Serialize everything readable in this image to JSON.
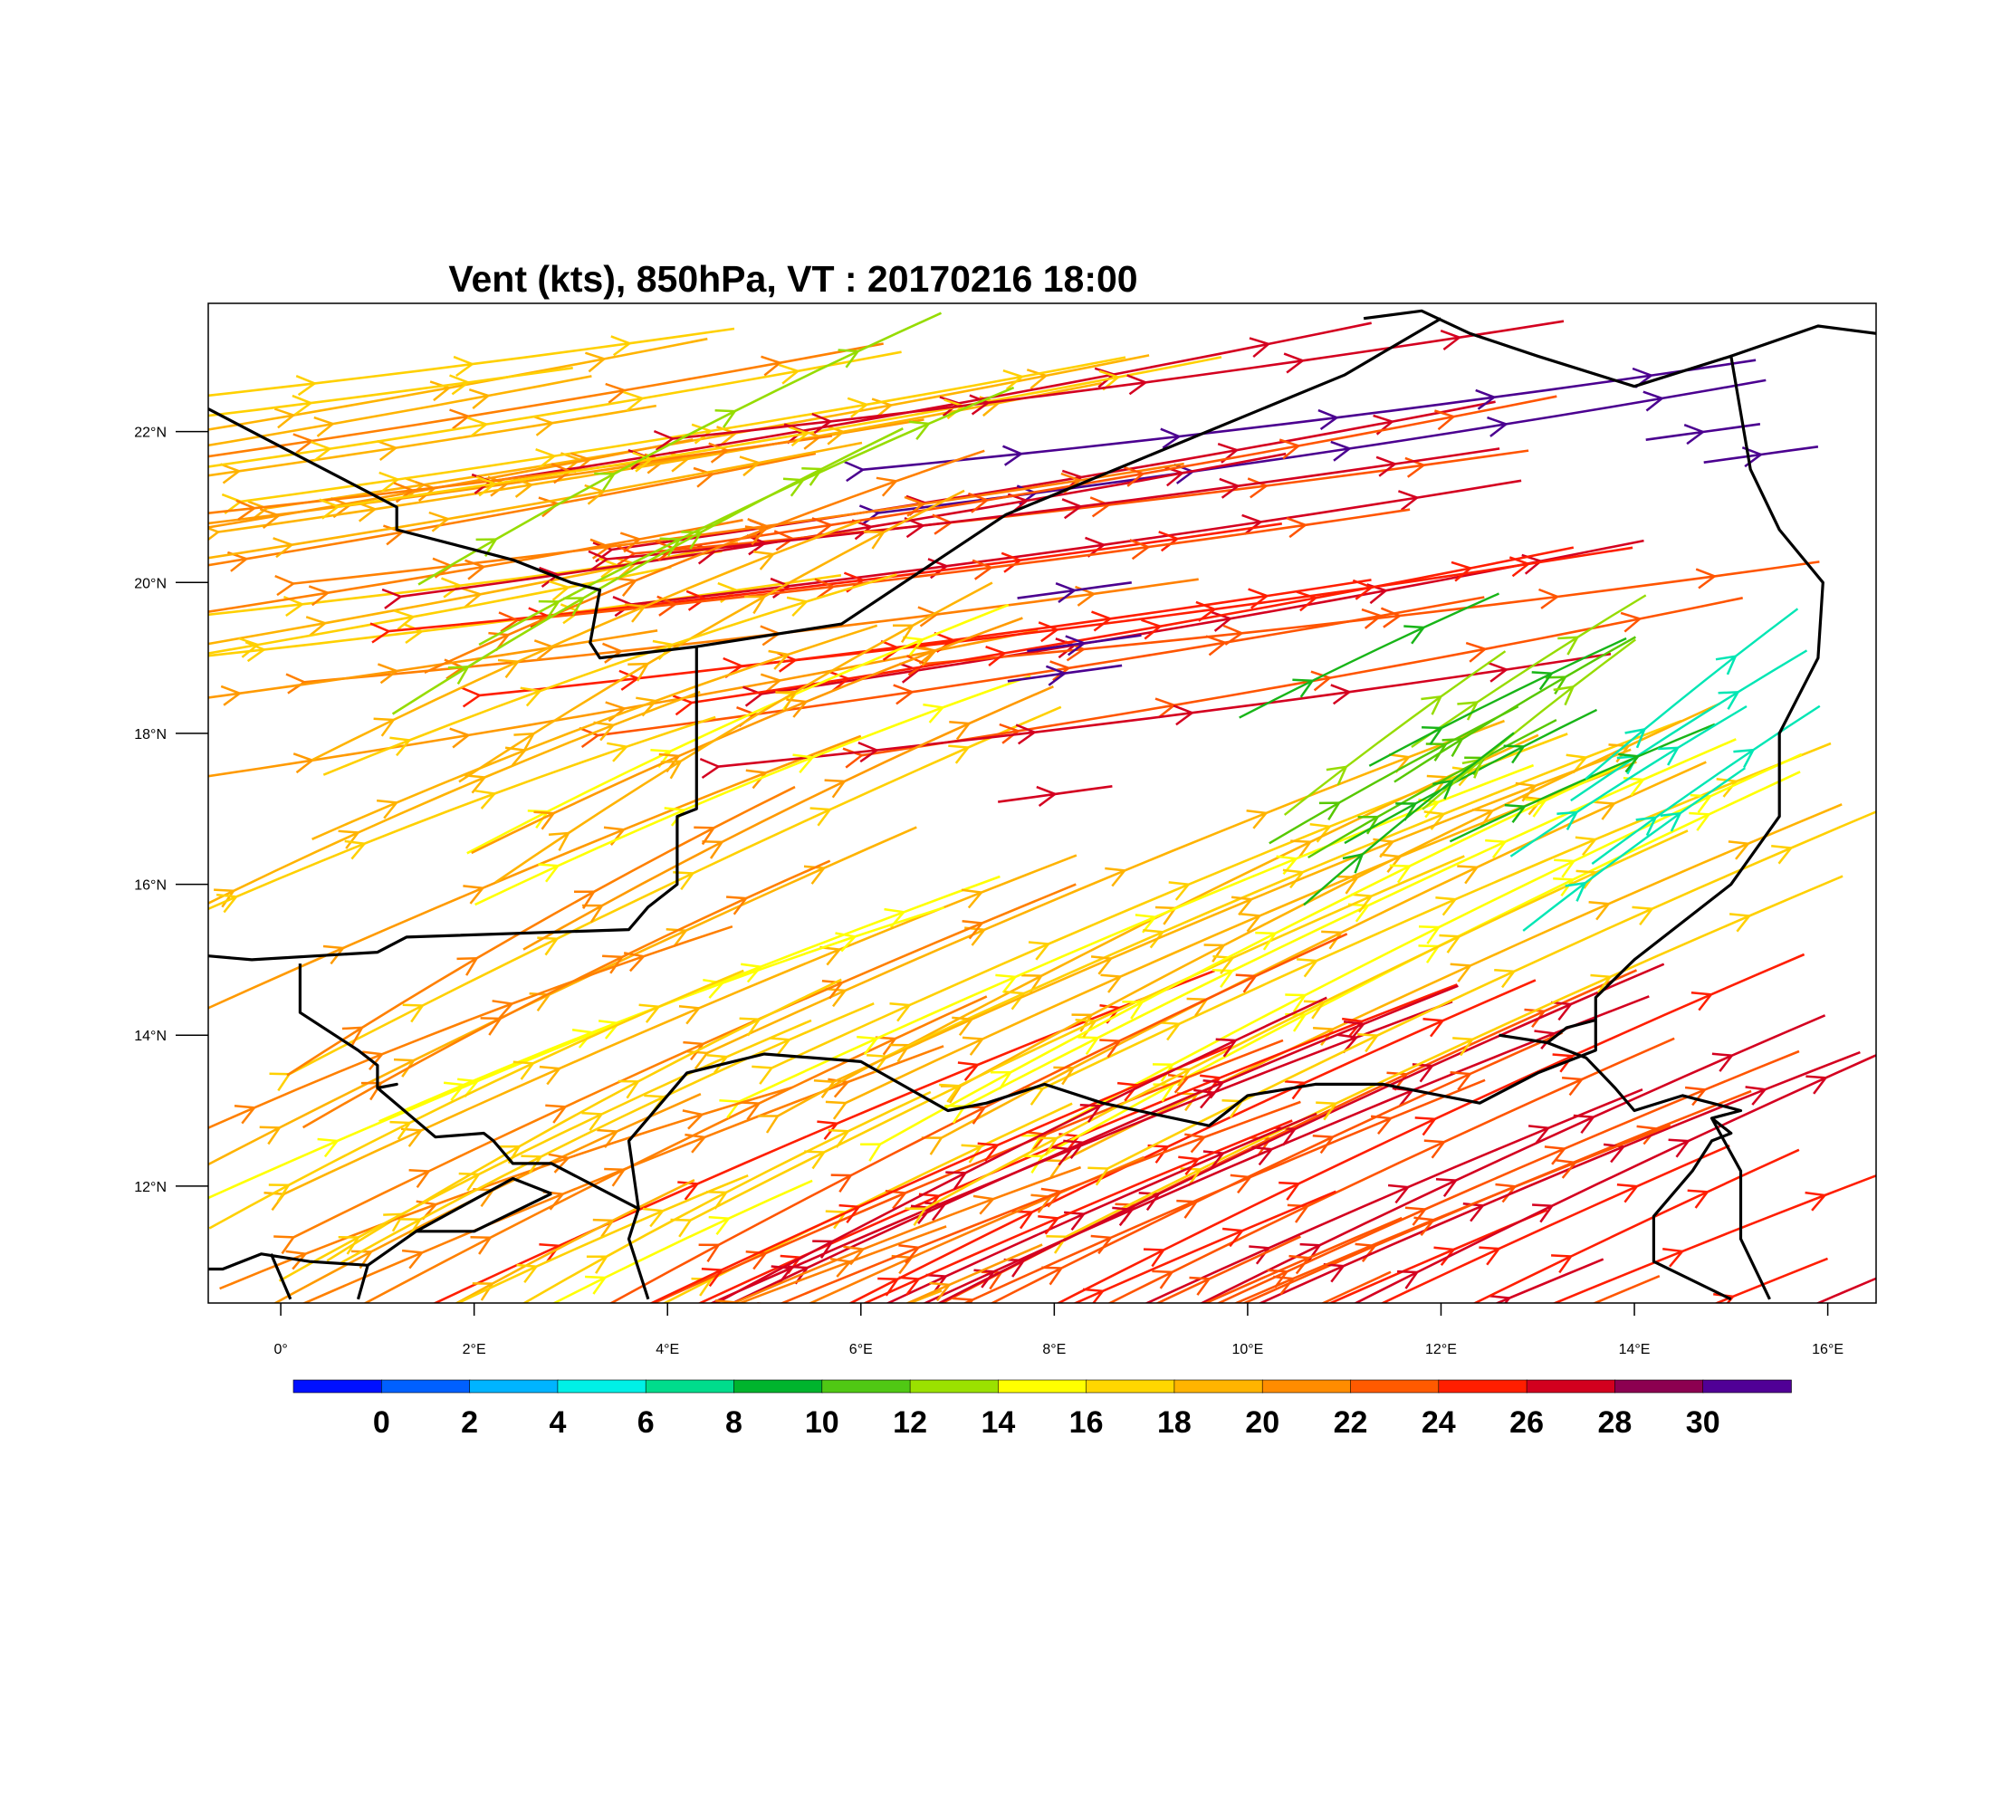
{
  "title": "Vent (kts), 850hPa, VT : 20170216  18:00",
  "map": {
    "lon_range": [
      -0.75,
      16.5
    ],
    "lat_range": [
      10.45,
      23.7
    ],
    "lon_ticks": [
      {
        "value": 0,
        "label": "0°"
      },
      {
        "value": 2,
        "label": "2°E"
      },
      {
        "value": 4,
        "label": "4°E"
      },
      {
        "value": 6,
        "label": "6°E"
      },
      {
        "value": 8,
        "label": "8°E"
      },
      {
        "value": 10,
        "label": "10°E"
      },
      {
        "value": 12,
        "label": "12°E"
      },
      {
        "value": 14,
        "label": "14°E"
      },
      {
        "value": 16,
        "label": "16°E"
      }
    ],
    "lat_ticks": [
      {
        "value": 22,
        "label": "22°N"
      },
      {
        "value": 20,
        "label": "20°N"
      },
      {
        "value": 18,
        "label": "18°N"
      },
      {
        "value": 16,
        "label": "16°N"
      },
      {
        "value": 14,
        "label": "14°N"
      },
      {
        "value": 12,
        "label": "12°N"
      }
    ],
    "borders": [
      [
        [
          -0.75,
          22.3
        ],
        [
          1.2,
          21.0
        ],
        [
          1.2,
          20.7
        ],
        [
          1.8,
          20.5
        ],
        [
          2.4,
          20.3
        ],
        [
          3.0,
          20.0
        ],
        [
          3.3,
          19.9
        ],
        [
          3.2,
          19.2
        ],
        [
          3.3,
          19.0
        ],
        [
          4.3,
          19.15
        ],
        [
          5.8,
          19.45
        ],
        [
          7.5,
          20.9
        ],
        [
          11.0,
          22.75
        ],
        [
          12.0,
          23.5
        ]
      ],
      [
        [
          4.3,
          19.15
        ],
        [
          4.3,
          17.0
        ],
        [
          4.1,
          16.9
        ],
        [
          4.1,
          16.0
        ],
        [
          3.8,
          15.7
        ],
        [
          3.6,
          15.4
        ],
        [
          1.3,
          15.3
        ],
        [
          1.0,
          15.1
        ],
        [
          -0.3,
          15.0
        ],
        [
          -0.75,
          15.05
        ]
      ],
      [
        [
          0.2,
          14.95
        ],
        [
          0.2,
          14.3
        ],
        [
          0.8,
          13.8
        ],
        [
          1.0,
          13.6
        ],
        [
          1.0,
          13.3
        ],
        [
          1.2,
          13.35
        ],
        [
          1.0,
          13.3
        ],
        [
          1.6,
          12.65
        ],
        [
          2.1,
          12.7
        ],
        [
          2.2,
          12.6
        ],
        [
          2.4,
          12.3
        ],
        [
          2.8,
          12.3
        ],
        [
          3.4,
          11.9
        ],
        [
          3.7,
          11.7
        ],
        [
          3.6,
          11.3
        ],
        [
          3.8,
          10.5
        ]
      ],
      [
        [
          3.7,
          11.7
        ],
        [
          3.6,
          12.6
        ],
        [
          4.2,
          13.5
        ],
        [
          5.0,
          13.75
        ],
        [
          6.0,
          13.65
        ],
        [
          6.9,
          13.0
        ],
        [
          7.3,
          13.1
        ],
        [
          7.9,
          13.35
        ],
        [
          8.5,
          13.1
        ],
        [
          9.6,
          12.8
        ],
        [
          10.0,
          13.2
        ],
        [
          10.7,
          13.35
        ],
        [
          11.4,
          13.35
        ],
        [
          12.4,
          13.1
        ],
        [
          13.0,
          13.5
        ],
        [
          13.6,
          13.8
        ],
        [
          13.6,
          14.5
        ],
        [
          14.0,
          15.0
        ],
        [
          15.0,
          16.0
        ],
        [
          15.5,
          16.9
        ],
        [
          15.5,
          18.0
        ],
        [
          15.9,
          19.0
        ],
        [
          15.95,
          20.0
        ],
        [
          15.5,
          20.7
        ],
        [
          15.2,
          21.5
        ],
        [
          15.0,
          23.0
        ],
        [
          14.0,
          22.6
        ],
        [
          13.0,
          23.0
        ],
        [
          12.3,
          23.3
        ],
        [
          11.8,
          23.6
        ],
        [
          11.2,
          23.5
        ]
      ],
      [
        [
          15.0,
          23.0
        ],
        [
          15.9,
          23.4
        ],
        [
          16.5,
          23.3
        ]
      ],
      [
        [
          -0.75,
          10.9
        ],
        [
          -0.6,
          10.9
        ],
        [
          -0.2,
          11.1
        ],
        [
          0.3,
          11.0
        ],
        [
          0.9,
          10.95
        ],
        [
          1.4,
          11.4
        ],
        [
          2.0,
          11.4
        ],
        [
          2.8,
          11.9
        ]
      ],
      [
        [
          1.4,
          11.4
        ],
        [
          2.4,
          12.1
        ],
        [
          2.8,
          11.9
        ]
      ],
      [
        [
          -0.1,
          11.1
        ],
        [
          0.1,
          10.5
        ]
      ],
      [
        [
          0.9,
          10.95
        ],
        [
          0.8,
          10.5
        ]
      ],
      [
        [
          15.0,
          10.5
        ],
        [
          14.2,
          11.0
        ],
        [
          14.2,
          11.6
        ],
        [
          14.6,
          12.2
        ],
        [
          14.8,
          12.6
        ],
        [
          15.0,
          12.7
        ],
        [
          14.8,
          12.9
        ],
        [
          15.1,
          13.0
        ],
        [
          14.8,
          13.1
        ],
        [
          14.5,
          13.2
        ],
        [
          14.0,
          13.0
        ],
        [
          13.8,
          13.3
        ],
        [
          13.5,
          13.7
        ],
        [
          13.1,
          13.9
        ],
        [
          13.3,
          14.1
        ],
        [
          13.6,
          14.2
        ]
      ],
      [
        [
          14.8,
          12.9
        ],
        [
          15.1,
          12.2
        ],
        [
          15.1,
          11.3
        ],
        [
          15.4,
          10.5
        ]
      ],
      [
        [
          13.1,
          13.9
        ],
        [
          12.6,
          14.0
        ]
      ]
    ],
    "streamline_colors": [
      "#ff8000",
      "#ff9a00",
      "#ffb300",
      "#ffd000",
      "#ffff00",
      "#ff5500",
      "#ff1e00",
      "#d40020",
      "#8b0055",
      "#4b0090",
      "#18b518",
      "#56c800",
      "#96dc00",
      "#00e6b4"
    ]
  },
  "colorbar": {
    "colors": [
      "#0010ff",
      "#0060ff",
      "#00b4ff",
      "#00f0e6",
      "#00dc8c",
      "#00b42d",
      "#50c814",
      "#9be100",
      "#ffff00",
      "#ffd700",
      "#ffb400",
      "#ff8c00",
      "#ff5a00",
      "#ff1e00",
      "#d2001e",
      "#8c0050",
      "#500096"
    ],
    "labels": [
      "0",
      "2",
      "4",
      "6",
      "8",
      "10",
      "12",
      "14",
      "16",
      "18",
      "20",
      "22",
      "24",
      "26",
      "28",
      "30"
    ]
  }
}
